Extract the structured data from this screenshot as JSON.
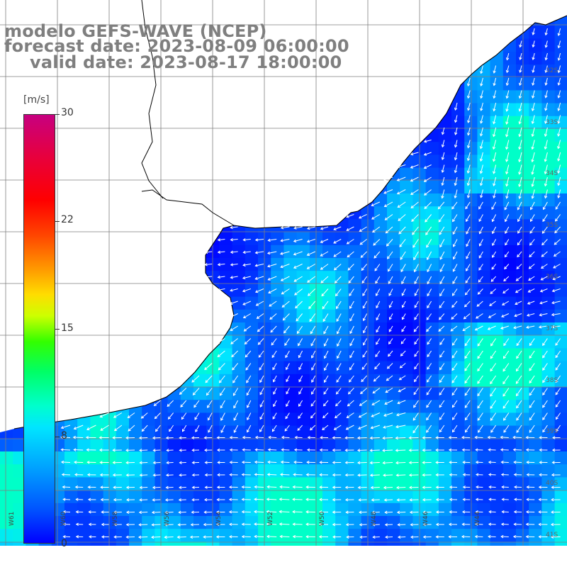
{
  "title": {
    "line1": "modelo GEFS-WAVE (NCEP)",
    "line2": "forecast date: 2023-08-09 06:00:00",
    "line3": "valid date: 2023-08-17 18:00:00"
  },
  "colorbar": {
    "unit": "[m/s]",
    "ticks": [
      "30",
      "22",
      "15",
      "8",
      "0"
    ],
    "tick_values": [
      30,
      22,
      15,
      8,
      0
    ],
    "min": 0,
    "max": 30
  },
  "axes": {
    "lon_labels": [
      "W61",
      "W60",
      "W58",
      "W56",
      "W54",
      "W52",
      "W50",
      "W48",
      "W46",
      "W44"
    ],
    "lat_labels": [
      "32S",
      "33S",
      "34S",
      "35S",
      "36S",
      "37S",
      "38S",
      "39S",
      "40S",
      "41S"
    ]
  },
  "colors": {
    "land": "#ffffff",
    "coastline": "#000000",
    "grid": "#7f7f7f",
    "arrows": "#ffffff",
    "title": "#7f7f7f"
  },
  "field": {
    "variable": "wind speed",
    "typical_range_ms": [
      0,
      12
    ],
    "arrow_direction": "mostly westward / south-westward"
  }
}
